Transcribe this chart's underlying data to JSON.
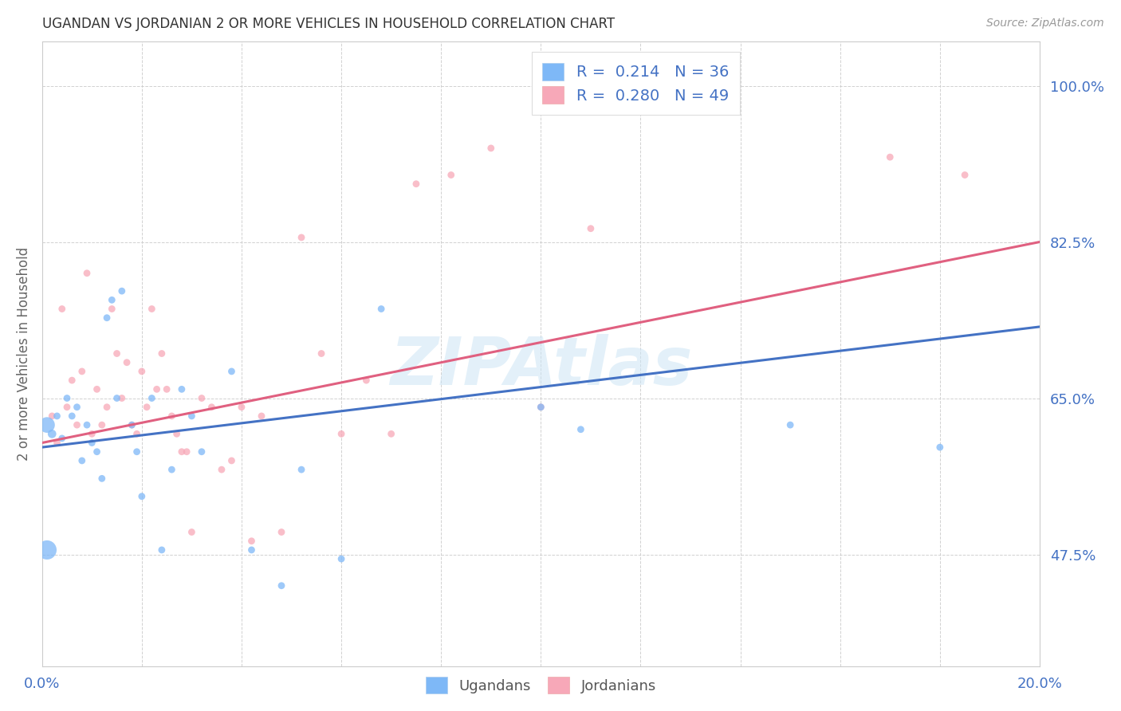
{
  "title": "UGANDAN VS JORDANIAN 2 OR MORE VEHICLES IN HOUSEHOLD CORRELATION CHART",
  "source": "Source: ZipAtlas.com",
  "ylabel": "2 or more Vehicles in Household",
  "watermark": "ZIPAtlas",
  "ugandan_color": "#7eb8f7",
  "jordanian_color": "#f7a8b8",
  "ugandan_line_color": "#4472c4",
  "jordanian_line_color": "#e06080",
  "axis_label_color": "#4472c4",
  "legend_text_color": "#4472c4",
  "r_ugandan": 0.214,
  "n_ugandan": 36,
  "r_jordanian": 0.28,
  "n_jordanian": 49,
  "xlim": [
    0.0,
    0.2
  ],
  "ylim": [
    0.35,
    1.05
  ],
  "yticks": [
    0.475,
    0.65,
    0.825,
    1.0
  ],
  "ytick_labels": [
    "47.5%",
    "65.0%",
    "82.5%",
    "100.0%"
  ],
  "ugandan_x": [
    0.001,
    0.002,
    0.003,
    0.004,
    0.005,
    0.006,
    0.007,
    0.008,
    0.009,
    0.01,
    0.011,
    0.012,
    0.013,
    0.014,
    0.015,
    0.016,
    0.018,
    0.019,
    0.02,
    0.022,
    0.024,
    0.026,
    0.028,
    0.03,
    0.032,
    0.038,
    0.042,
    0.048,
    0.052,
    0.06,
    0.068,
    0.1,
    0.108,
    0.15,
    0.001,
    0.18
  ],
  "ugandan_y": [
    0.62,
    0.61,
    0.63,
    0.605,
    0.65,
    0.63,
    0.64,
    0.58,
    0.62,
    0.6,
    0.59,
    0.56,
    0.74,
    0.76,
    0.65,
    0.77,
    0.62,
    0.59,
    0.54,
    0.65,
    0.48,
    0.57,
    0.66,
    0.63,
    0.59,
    0.68,
    0.48,
    0.44,
    0.57,
    0.47,
    0.75,
    0.64,
    0.615,
    0.62,
    0.48,
    0.595
  ],
  "ugandan_sizes": [
    200,
    60,
    40,
    40,
    40,
    40,
    40,
    40,
    40,
    40,
    40,
    40,
    40,
    40,
    40,
    40,
    40,
    40,
    40,
    40,
    40,
    40,
    40,
    40,
    40,
    40,
    40,
    40,
    40,
    40,
    40,
    40,
    40,
    40,
    300,
    40
  ],
  "jordanian_x": [
    0.002,
    0.003,
    0.004,
    0.005,
    0.006,
    0.007,
    0.008,
    0.009,
    0.01,
    0.011,
    0.012,
    0.013,
    0.014,
    0.015,
    0.016,
    0.017,
    0.018,
    0.019,
    0.02,
    0.021,
    0.022,
    0.023,
    0.024,
    0.025,
    0.026,
    0.027,
    0.028,
    0.029,
    0.03,
    0.032,
    0.034,
    0.036,
    0.038,
    0.04,
    0.042,
    0.044,
    0.048,
    0.052,
    0.056,
    0.06,
    0.065,
    0.07,
    0.075,
    0.082,
    0.09,
    0.1,
    0.11,
    0.17,
    0.185
  ],
  "jordanian_y": [
    0.63,
    0.6,
    0.75,
    0.64,
    0.67,
    0.62,
    0.68,
    0.79,
    0.61,
    0.66,
    0.62,
    0.64,
    0.75,
    0.7,
    0.65,
    0.69,
    0.62,
    0.61,
    0.68,
    0.64,
    0.75,
    0.66,
    0.7,
    0.66,
    0.63,
    0.61,
    0.59,
    0.59,
    0.5,
    0.65,
    0.64,
    0.57,
    0.58,
    0.64,
    0.49,
    0.63,
    0.5,
    0.83,
    0.7,
    0.61,
    0.67,
    0.61,
    0.89,
    0.9,
    0.93,
    0.64,
    0.84,
    0.92,
    0.9
  ],
  "jordanian_sizes": [
    40,
    40,
    40,
    40,
    40,
    40,
    40,
    40,
    40,
    40,
    40,
    40,
    40,
    40,
    40,
    40,
    40,
    40,
    40,
    40,
    40,
    40,
    40,
    40,
    40,
    40,
    40,
    40,
    40,
    40,
    40,
    40,
    40,
    40,
    40,
    40,
    40,
    40,
    40,
    40,
    40,
    40,
    40,
    40,
    40,
    40,
    40,
    40,
    40
  ],
  "ug_line_x": [
    0.0,
    0.2
  ],
  "ug_line_y": [
    0.595,
    0.73
  ],
  "jo_line_x": [
    0.0,
    0.2
  ],
  "jo_line_y": [
    0.6,
    0.825
  ]
}
